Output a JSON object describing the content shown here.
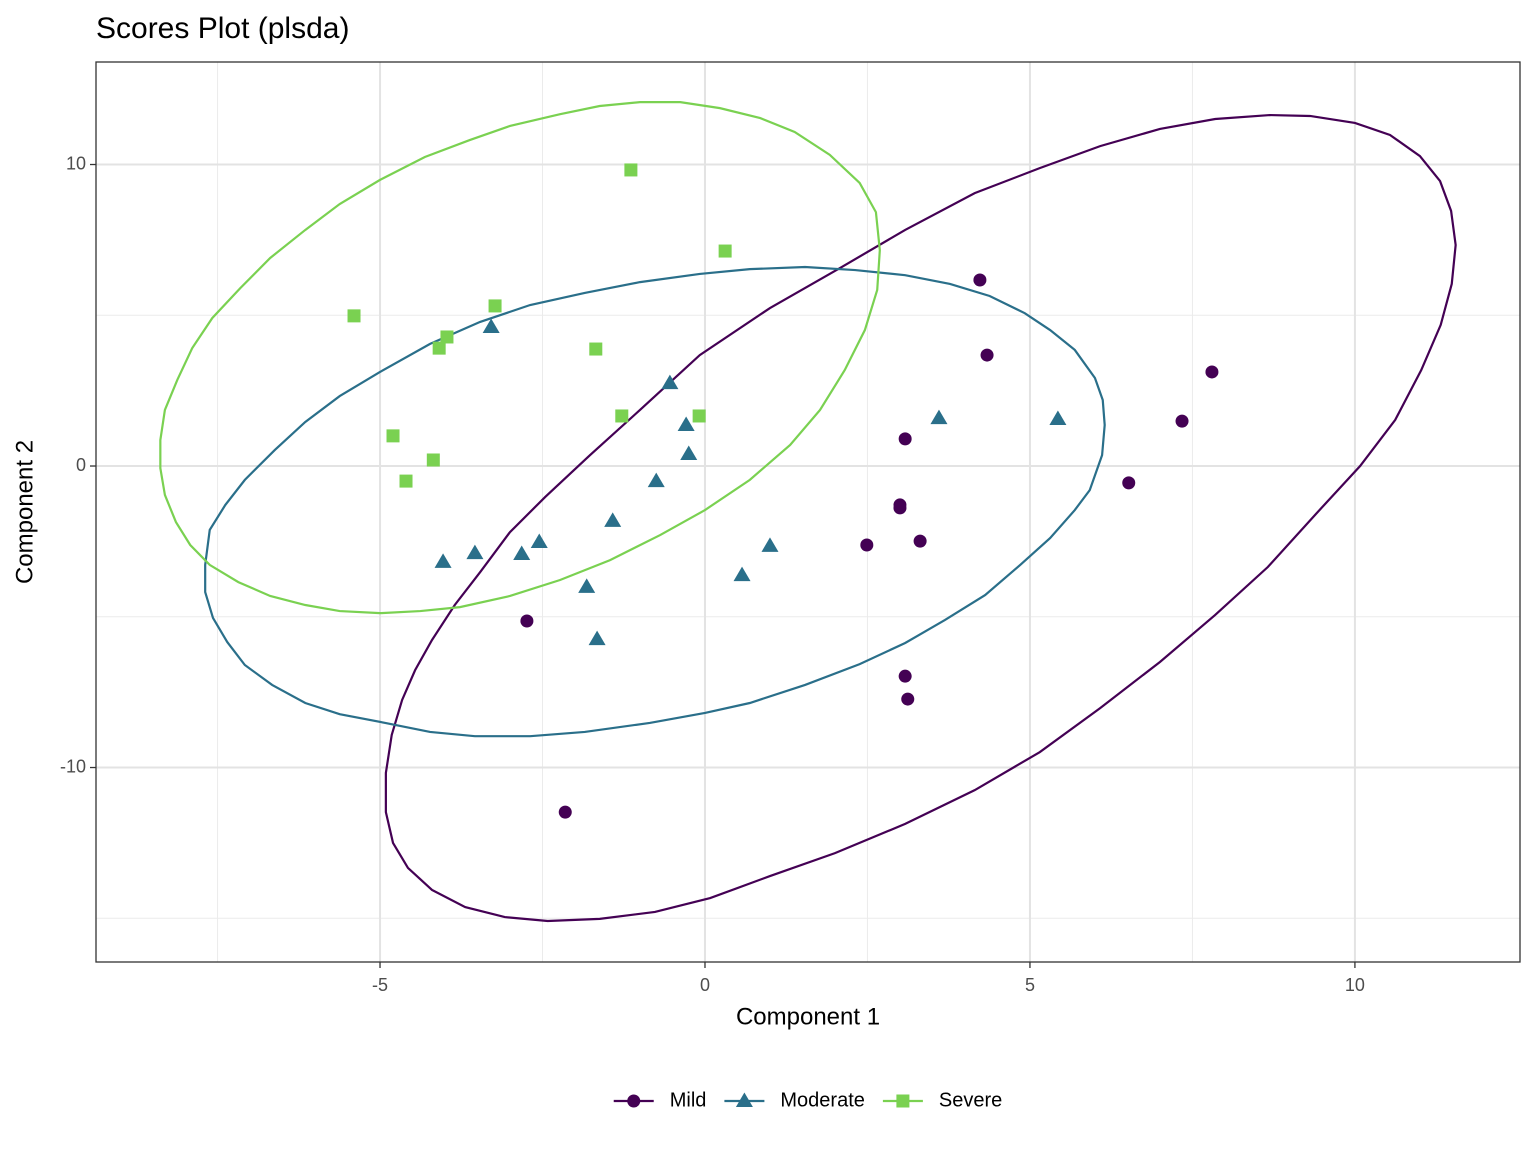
{
  "chart_data": {
    "type": "scatter",
    "title": "Scores Plot (plsda)",
    "x_label": "Component 1",
    "y_label": "Component 2",
    "xlim": [
      -9.37,
      12.54
    ],
    "ylim": [
      -16.45,
      13.4
    ],
    "xticks": [
      -5,
      0,
      5,
      10
    ],
    "yticks": [
      -10,
      0,
      10
    ],
    "xminor": [
      -7.5,
      -2.5,
      2.5,
      7.5
    ],
    "yminor": [
      -15,
      -5,
      5
    ],
    "grid": true,
    "legend_position": "bottom",
    "series": [
      {
        "name": "Mild",
        "color": "#440154",
        "marker": "circle",
        "x": [
          4.23,
          4.34,
          7.8,
          7.34,
          3.08,
          6.52,
          3.0,
          3.0,
          2.49,
          3.31,
          -2.74,
          3.08,
          3.12,
          -2.15
        ],
        "y": [
          6.17,
          3.68,
          3.12,
          1.49,
          0.9,
          -0.56,
          -1.29,
          -1.39,
          -2.62,
          -2.49,
          -5.14,
          -6.97,
          -7.73,
          -11.48
        ],
        "ellipse": {
          "x": [
            -4.91,
            -4.82,
            -4.66,
            -4.46,
            -4.2,
            -3.85,
            -3.46,
            -3.0,
            -2.46,
            -1.77,
            -1.0,
            -0.08,
            1.0,
            2.08,
            3.08,
            4.15,
            5.15,
            6.08,
            7.0,
            7.85,
            8.69,
            9.31,
            10.0,
            10.54,
            11.0,
            11.31,
            11.48,
            11.55,
            11.49,
            11.32,
            11.02,
            10.62,
            10.08,
            9.4,
            8.66,
            7.85,
            7.0,
            6.08,
            5.15,
            4.15,
            3.08,
            2.0,
            1.0,
            0.08,
            -0.77,
            -1.62,
            -2.42,
            -3.08,
            -3.69,
            -4.2,
            -4.57,
            -4.8,
            -4.91
          ],
          "y": [
            -10.18,
            -8.92,
            -7.76,
            -6.77,
            -5.77,
            -4.61,
            -3.52,
            -2.19,
            -1.03,
            0.36,
            1.86,
            3.68,
            5.24,
            6.57,
            7.83,
            9.05,
            9.88,
            10.61,
            11.18,
            11.51,
            11.64,
            11.61,
            11.38,
            10.98,
            10.28,
            9.45,
            8.46,
            7.33,
            6.04,
            4.68,
            3.18,
            1.53,
            0,
            -1.59,
            -3.35,
            -4.94,
            -6.5,
            -8.03,
            -9.49,
            -10.75,
            -11.87,
            -12.84,
            -13.6,
            -14.33,
            -14.79,
            -15.02,
            -15.09,
            -14.96,
            -14.63,
            -14.06,
            -13.33,
            -12.5,
            -11.48
          ]
        }
      },
      {
        "name": "Moderate",
        "color": "#2a6f8a",
        "marker": "triangle",
        "x": [
          -3.29,
          -0.54,
          -0.29,
          3.6,
          5.43,
          -0.25,
          -0.75,
          -1.42,
          -2.55,
          -2.82,
          -3.54,
          -4.03,
          1.0,
          0.57,
          -1.82,
          -1.66
        ],
        "y": [
          4.61,
          2.75,
          1.36,
          1.59,
          1.56,
          0.4,
          -0.5,
          -1.82,
          -2.52,
          -2.92,
          -2.89,
          -3.18,
          -2.65,
          -3.62,
          -4.01,
          -5.74
        ],
        "ellipse": {
          "x": [
            -7.69,
            -7.62,
            -7.38,
            -7.08,
            -6.62,
            -6.15,
            -5.62,
            -5.0,
            -4.23,
            -3.46,
            -2.69,
            -1.85,
            -1.0,
            -0.08,
            0.69,
            1.54,
            2.31,
            3.08,
            3.77,
            4.38,
            4.92,
            5.31,
            5.69,
            6.0,
            6.12,
            6.15,
            6.11,
            5.92,
            5.69,
            5.31,
            4.85,
            4.31,
            3.69,
            3.08,
            2.38,
            1.54,
            0.69,
            0,
            -0.85,
            -1.85,
            -2.69,
            -3.54,
            -4.23,
            -4.92,
            -5.62,
            -6.15,
            -6.66,
            -7.08,
            -7.35,
            -7.57,
            -7.69
          ],
          "y": [
            -3.28,
            -2.12,
            -1.29,
            -0.46,
            0.53,
            1.46,
            2.32,
            3.12,
            4.05,
            4.78,
            5.34,
            5.74,
            6.1,
            6.37,
            6.53,
            6.6,
            6.5,
            6.33,
            6.04,
            5.64,
            5.07,
            4.51,
            3.85,
            2.92,
            2.19,
            1.36,
            0.36,
            -0.8,
            -1.46,
            -2.39,
            -3.28,
            -4.28,
            -5.11,
            -5.87,
            -6.57,
            -7.26,
            -7.86,
            -8.19,
            -8.52,
            -8.82,
            -8.96,
            -8.96,
            -8.82,
            -8.52,
            -8.23,
            -7.86,
            -7.26,
            -6.6,
            -5.84,
            -5.04,
            -4.18
          ]
        }
      },
      {
        "name": "Severe",
        "color": "#7ad151",
        "marker": "square",
        "x": [
          -1.14,
          0.31,
          -5.4,
          -3.23,
          -3.97,
          -4.09,
          -1.68,
          -1.28,
          -0.09,
          -4.8,
          -4.18,
          -4.6
        ],
        "y": [
          9.82,
          7.13,
          4.98,
          5.31,
          4.28,
          3.91,
          3.88,
          1.66,
          1.66,
          1.0,
          0.2,
          -0.5
        ],
        "ellipse": {
          "x": [
            -8.38,
            -8.31,
            -8.12,
            -7.89,
            -7.58,
            -7.15,
            -6.69,
            -6.15,
            -5.62,
            -5.0,
            -4.31,
            -3.62,
            -3.0,
            -2.23,
            -1.62,
            -1.0,
            -0.38,
            0.23,
            0.85,
            1.38,
            1.92,
            2.38,
            2.63,
            2.69,
            2.65,
            2.46,
            2.15,
            1.77,
            1.31,
            0.69,
            0,
            -0.69,
            -1.46,
            -2.23,
            -3.0,
            -3.77,
            -4.38,
            -5.0,
            -5.62,
            -6.15,
            -6.69,
            -7.18,
            -7.62,
            -7.92,
            -8.14,
            -8.31,
            -8.38
          ],
          "y": [
            0.86,
            1.86,
            2.85,
            3.91,
            4.91,
            5.9,
            6.9,
            7.83,
            8.69,
            9.49,
            10.25,
            10.81,
            11.28,
            11.67,
            11.94,
            12.07,
            12.07,
            11.87,
            11.54,
            11.08,
            10.32,
            9.39,
            8.42,
            7.16,
            5.84,
            4.51,
            3.18,
            1.86,
            0.7,
            -0.46,
            -1.46,
            -2.29,
            -3.12,
            -3.78,
            -4.31,
            -4.68,
            -4.81,
            -4.88,
            -4.81,
            -4.61,
            -4.31,
            -3.85,
            -3.28,
            -2.62,
            -1.86,
            -0.96,
            -0.07
          ]
        }
      }
    ]
  }
}
